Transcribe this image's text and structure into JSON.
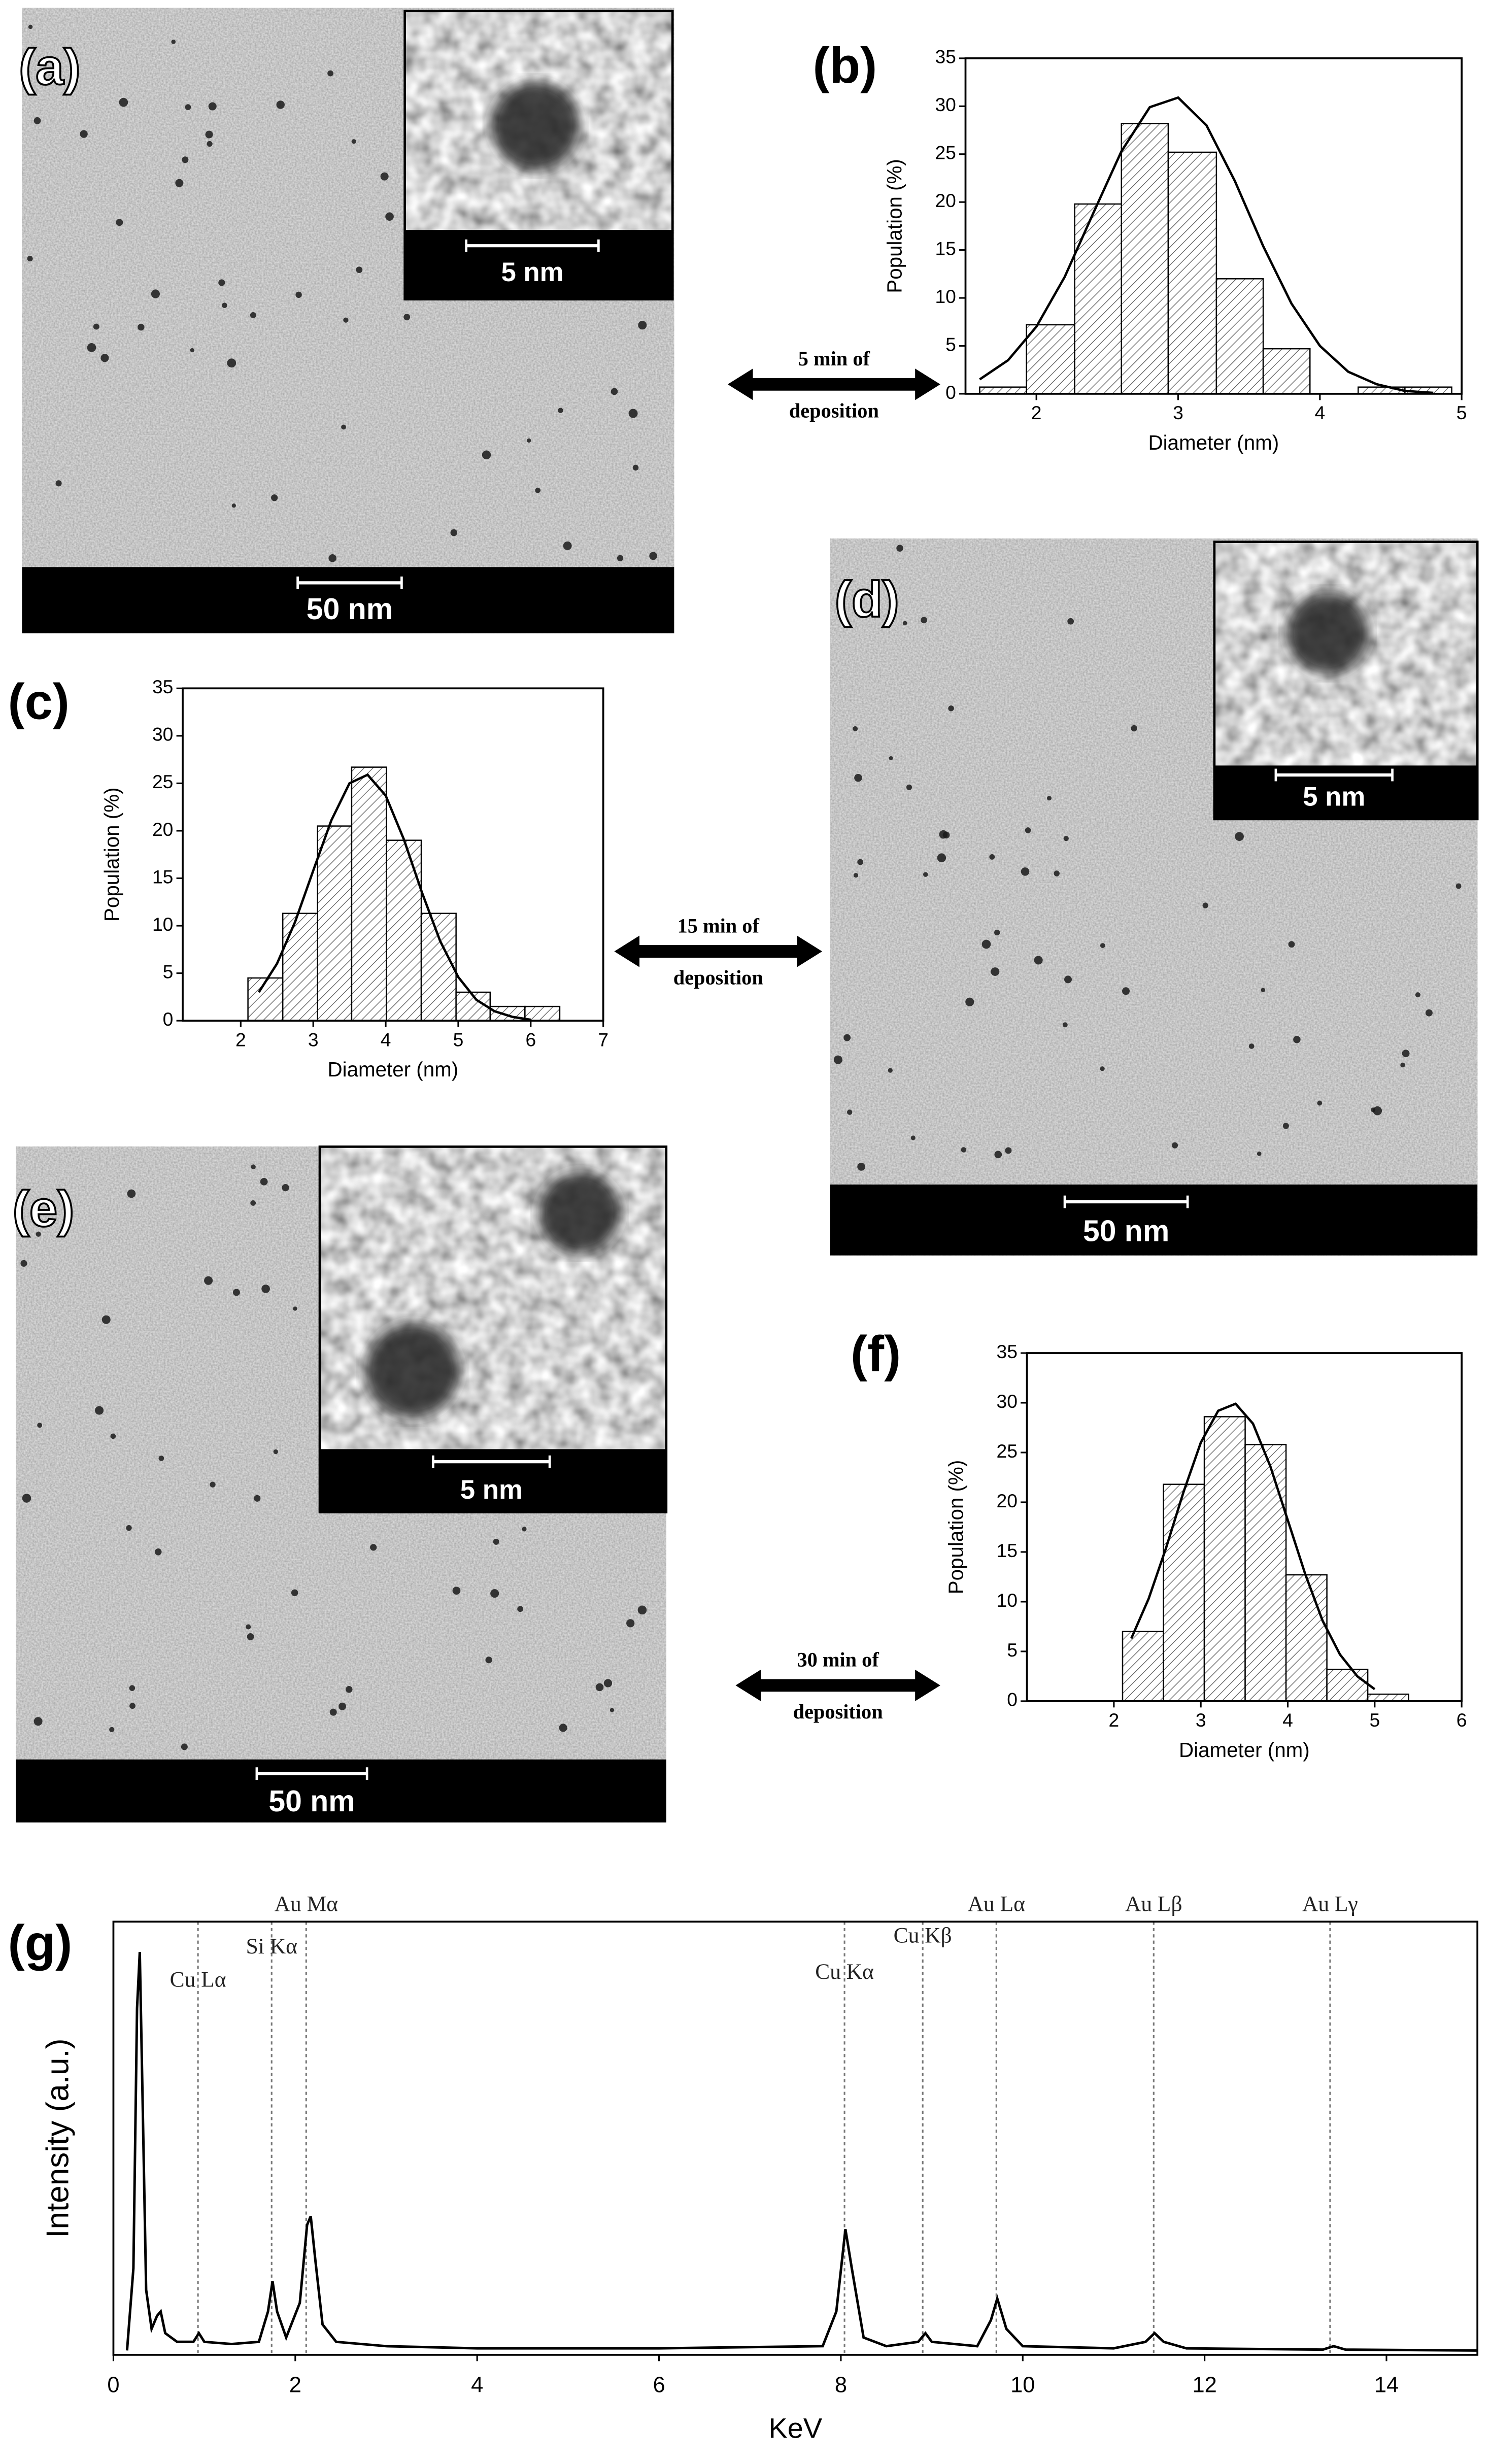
{
  "images": [
    {
      "panel_label": "(a)",
      "scale_bar": "50 nm",
      "inset_scale_bar": "5 nm"
    },
    {
      "panel_label": "(d)",
      "scale_bar": "50 nm",
      "inset_scale_bar": "5 nm"
    },
    {
      "panel_label": "(e)",
      "scale_bar": "50 nm",
      "inset_scale_bar": "5 nm"
    }
  ],
  "arrows": [
    {
      "lines": [
        "5 min of",
        "deposition"
      ]
    },
    {
      "lines": [
        "15 min of",
        "deposition"
      ]
    },
    {
      "lines": [
        "30 min of",
        "deposition"
      ]
    }
  ],
  "chart_data": [
    {
      "type": "histogram",
      "panel_label": "(b)",
      "xlabel": "Diameter (nm)",
      "ylabel": "Population (%)",
      "bins": [
        1.6,
        1.93,
        2.27,
        2.6,
        2.93,
        3.27,
        3.6,
        3.93,
        4.27,
        4.6,
        4.93
      ],
      "values": [
        0.7,
        7.2,
        19.8,
        28.2,
        25.2,
        12,
        4.7,
        0,
        0.7,
        0.7
      ],
      "fit": {
        "x": [
          1.6,
          1.8,
          2.0,
          2.2,
          2.4,
          2.6,
          2.8,
          3.0,
          3.2,
          3.4,
          3.6,
          3.8,
          4.0,
          4.2,
          4.4,
          4.6,
          4.8
        ],
        "y": [
          1.5,
          3.5,
          7.0,
          12.2,
          18.8,
          25.3,
          29.9,
          30.9,
          28.0,
          22.2,
          15.4,
          9.4,
          5.0,
          2.3,
          1.0,
          0.3,
          0.1
        ]
      },
      "xlim": [
        1.5,
        5
      ],
      "xticks": [
        2,
        3,
        4,
        5
      ],
      "ylim": [
        0,
        35
      ],
      "yticks": [
        0,
        5,
        10,
        15,
        20,
        25,
        30,
        35
      ]
    },
    {
      "type": "histogram",
      "panel_label": "(c)",
      "xlabel": "Diameter (nm)",
      "ylabel": "Population (%)",
      "bins": [
        2.1,
        2.58,
        3.06,
        3.53,
        4.01,
        4.49,
        4.97,
        5.44,
        5.92,
        6.4
      ],
      "values": [
        4.5,
        11.3,
        20.5,
        26.7,
        19,
        11.3,
        3,
        1.5,
        1.5
      ],
      "fit": {
        "x": [
          2.25,
          2.5,
          2.75,
          3.0,
          3.25,
          3.5,
          3.75,
          4.0,
          4.25,
          4.5,
          4.75,
          5.0,
          5.25,
          5.5,
          5.75,
          6.0
        ],
        "y": [
          3.0,
          6.0,
          10.4,
          15.8,
          21.1,
          25.0,
          25.9,
          23.7,
          19.1,
          13.5,
          8.4,
          4.6,
          2.2,
          1.0,
          0.4,
          0.1
        ]
      },
      "xlim": [
        1.2,
        7
      ],
      "xticks": [
        2,
        3,
        4,
        5,
        6,
        7
      ],
      "ylim": [
        0,
        35
      ],
      "yticks": [
        0,
        5,
        10,
        15,
        20,
        25,
        30,
        35
      ]
    },
    {
      "type": "histogram",
      "panel_label": "(f)",
      "xlabel": "Diameter (nm)",
      "ylabel": "Population (%)",
      "bins": [
        2.1,
        2.57,
        3.04,
        3.51,
        3.98,
        4.45,
        4.92,
        5.39
      ],
      "values": [
        7,
        21.8,
        28.6,
        25.8,
        12.7,
        3.2,
        0.7
      ],
      "fit": {
        "x": [
          2.2,
          2.4,
          2.6,
          2.8,
          3.0,
          3.2,
          3.4,
          3.6,
          3.8,
          4.0,
          4.2,
          4.4,
          4.6,
          4.8,
          5.0
        ],
        "y": [
          6.3,
          10.3,
          15.4,
          21.0,
          26.0,
          29.2,
          29.9,
          27.9,
          23.6,
          18.2,
          12.8,
          8.1,
          4.7,
          2.5,
          1.2
        ]
      },
      "xlim": [
        1,
        6
      ],
      "xticks": [
        2,
        3,
        4,
        5,
        6
      ],
      "ylim": [
        0,
        35
      ],
      "yticks": [
        0,
        5,
        10,
        15,
        20,
        25,
        30,
        35
      ]
    },
    {
      "type": "line",
      "panel_label": "(g)",
      "xlabel": "KeV",
      "ylabel": "Intensity (a.u.)",
      "x": [
        0.15,
        0.22,
        0.26,
        0.29,
        0.32,
        0.36,
        0.42,
        0.48,
        0.52,
        0.57,
        0.7,
        0.88,
        0.94,
        1.0,
        1.3,
        1.6,
        1.7,
        1.75,
        1.8,
        1.9,
        2.05,
        2.13,
        2.17,
        2.22,
        2.3,
        2.45,
        3,
        4,
        6,
        7.8,
        7.95,
        8.05,
        8.12,
        8.25,
        8.5,
        8.85,
        8.93,
        9.0,
        9.5,
        9.65,
        9.72,
        9.82,
        10.0,
        11,
        11.35,
        11.45,
        11.55,
        11.8,
        13.3,
        13.42,
        13.55,
        15
      ],
      "values": [
        1,
        20,
        80,
        93,
        60,
        15,
        6,
        9,
        10,
        5,
        3,
        3,
        5,
        3,
        2.5,
        3,
        10,
        17,
        10,
        4,
        12,
        30,
        32,
        22,
        7,
        3,
        2,
        1.5,
        1.5,
        2,
        10,
        29,
        20,
        4,
        2,
        3,
        5,
        3,
        2,
        8,
        13,
        6,
        2,
        1.5,
        3,
        5,
        3,
        1.5,
        1.2,
        2,
        1.2,
        1
      ],
      "annotations": [
        {
          "x": 0.93,
          "label": "Cu Lα"
        },
        {
          "x": 1.74,
          "label": "Si Kα"
        },
        {
          "x": 2.12,
          "label": "Au Mα"
        },
        {
          "x": 8.04,
          "label": "Cu Kα"
        },
        {
          "x": 8.9,
          "label": "Cu Kβ"
        },
        {
          "x": 9.71,
          "label": "Au Lα"
        },
        {
          "x": 11.44,
          "label": "Au Lβ"
        },
        {
          "x": 13.38,
          "label": "Au Lγ"
        }
      ],
      "xlim": [
        0,
        15
      ],
      "xticks": [
        0,
        2,
        4,
        6,
        8,
        10,
        12,
        14
      ],
      "ylim": [
        0,
        100
      ]
    }
  ]
}
